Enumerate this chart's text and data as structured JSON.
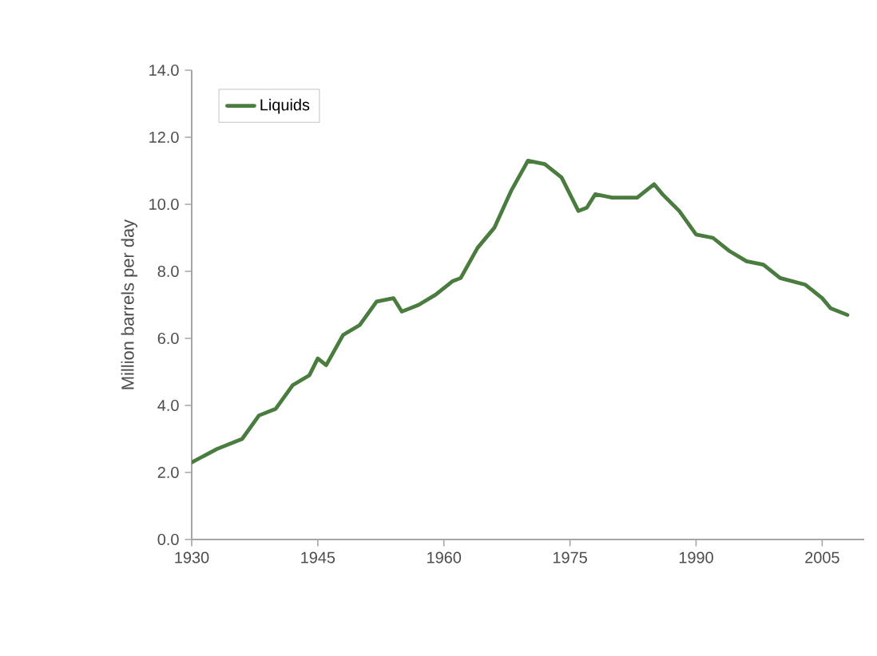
{
  "chart_data": {
    "type": "line",
    "ylabel": "Million barrels per day",
    "legend": "top left",
    "x": [
      1930,
      1933,
      1936,
      1938,
      1940,
      1942,
      1944,
      1945,
      1946,
      1948,
      1950,
      1952,
      1954,
      1955,
      1957,
      1959,
      1961,
      1962,
      1964,
      1966,
      1968,
      1970,
      1972,
      1974,
      1976,
      1977,
      1978,
      1980,
      1983,
      1985,
      1986,
      1988,
      1990,
      1992,
      1994,
      1996,
      1998,
      2000,
      2003,
      2005,
      2006,
      2008
    ],
    "series": [
      {
        "name": "Liquids",
        "color": "#4a7c3f",
        "values": [
          2.3,
          2.7,
          3.0,
          3.7,
          3.9,
          4.6,
          4.9,
          5.4,
          5.2,
          6.1,
          6.4,
          7.1,
          7.2,
          6.8,
          7.0,
          7.3,
          7.7,
          7.8,
          8.7,
          9.3,
          10.4,
          11.3,
          11.2,
          10.8,
          9.8,
          9.9,
          10.3,
          10.2,
          10.2,
          10.6,
          10.3,
          9.8,
          9.1,
          9.0,
          8.6,
          8.3,
          8.2,
          7.8,
          7.6,
          7.2,
          6.9,
          6.7
        ]
      }
    ],
    "xlim": [
      1930,
      2010
    ],
    "xticks": [
      1930,
      1945,
      1960,
      1975,
      1990,
      2005
    ],
    "ylim": [
      0,
      14
    ],
    "yticks": [
      {
        "value": 0,
        "label": "0.0"
      },
      {
        "value": 2,
        "label": "2.0"
      },
      {
        "value": 4,
        "label": "4.0"
      },
      {
        "value": 6,
        "label": "6.0"
      },
      {
        "value": 8,
        "label": "8.0"
      },
      {
        "value": 10,
        "label": "10.0"
      },
      {
        "value": 12,
        "label": "12.0"
      },
      {
        "value": 14,
        "label": "14.0"
      }
    ]
  }
}
